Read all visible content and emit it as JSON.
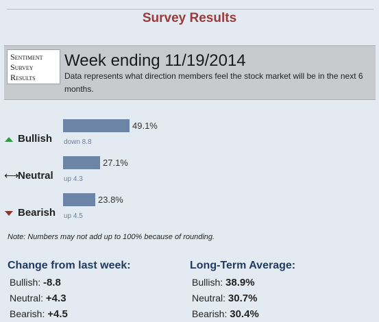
{
  "page_title": "Survey Results",
  "logo": {
    "line1": "Sentiment",
    "line2": "Survey",
    "line3": "Results"
  },
  "week": {
    "title": "Week ending 11/19/2014",
    "description": "Data represents what direction members feel the stock market will be in the next 6 months."
  },
  "sentiments": [
    {
      "label": "Bullish",
      "icon": "arrow-up-icon",
      "percent": 49.1,
      "value_text": "49.1%",
      "change_text": "down 8.8"
    },
    {
      "label": "Neutral",
      "icon": "double-arrow-icon",
      "percent": 27.1,
      "value_text": "27.1%",
      "change_text": "up 4.3"
    },
    {
      "label": "Bearish",
      "icon": "arrow-down-icon",
      "percent": 23.8,
      "value_text": "23.8%",
      "change_text": "up 4.5"
    }
  ],
  "note": "Note: Numbers may not add up to 100% because of rounding.",
  "change_from_last_week": {
    "heading": "Change from last week:",
    "items": [
      {
        "label": "Bullish:",
        "value": "-8.8"
      },
      {
        "label": "Neutral:",
        "value": "+4.3"
      },
      {
        "label": "Bearish:",
        "value": "+4.5"
      }
    ]
  },
  "long_term_average": {
    "heading": "Long-Term Average:",
    "items": [
      {
        "label": "Bullish:",
        "value": "38.9%"
      },
      {
        "label": "Neutral:",
        "value": "30.7%"
      },
      {
        "label": "Bearish:",
        "value": "30.4%"
      }
    ]
  },
  "colors": {
    "title": "#9a3a3a",
    "bar": "#6c84a6",
    "bullish_icon": "#2e9a40",
    "bearish_icon": "#8a3a2c",
    "heading": "#1f3a5e"
  }
}
